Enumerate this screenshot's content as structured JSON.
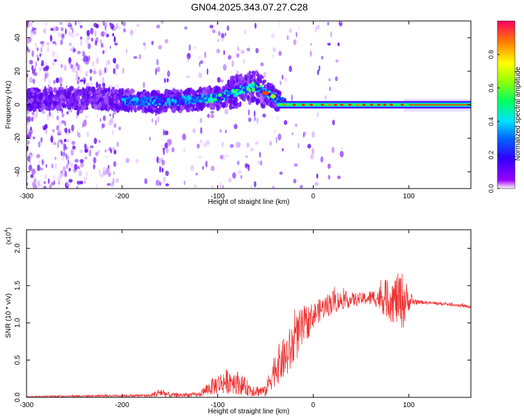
{
  "title": "GN04.2025.343.07.27.C28",
  "chart_data": [
    {
      "type": "heatmap",
      "name": "spectrogram",
      "xlabel": "Height of straight line (km)",
      "ylabel": "Frequency (Hz)",
      "xlim": [
        -300,
        165
      ],
      "ylim": [
        -50,
        50
      ],
      "x_ticks": [
        -300,
        -200,
        -100,
        0,
        100
      ],
      "x_tick_labels": [
        "-300",
        "-200",
        "-100",
        "0",
        "100"
      ],
      "y_ticks": [
        -40,
        -20,
        0,
        20,
        40
      ],
      "y_tick_labels": [
        "-40",
        "-20",
        "0",
        "20",
        "40"
      ],
      "ridge": {
        "x": [
          -300,
          -250,
          -200,
          -175,
          -150,
          -125,
          -100,
          -75,
          -60,
          -52,
          -45,
          -40,
          -35,
          -30,
          -20,
          0,
          50,
          90,
          100,
          165
        ],
        "y": [
          3,
          4,
          3,
          2,
          2,
          3,
          4,
          9,
          11,
          8,
          6,
          4,
          2,
          1,
          0,
          0,
          0,
          0,
          0,
          0
        ]
      },
      "colorbar": {
        "label": "Normalized spectral amplitude",
        "range": [
          0,
          1
        ],
        "ticks": [
          0.0,
          0.2,
          0.4,
          0.6,
          0.8
        ],
        "tick_labels": [
          "0.0",
          "0.2",
          "0.4",
          "0.6",
          "0.8"
        ]
      }
    },
    {
      "type": "line",
      "name": "snr",
      "xlabel": "Height of straight line (km)",
      "ylabel": "SNR (10 * v/v)",
      "scale_label": "(x10",
      "scale_exponent": "4",
      "xlim": [
        -300,
        165
      ],
      "ylim": [
        0,
        22500
      ],
      "x_ticks": [
        -300,
        -200,
        -100,
        0,
        100
      ],
      "x_tick_labels": [
        "-300",
        "-200",
        "-100",
        "0",
        "100"
      ],
      "y_ticks": [
        0,
        5000,
        10000,
        15000,
        20000
      ],
      "y_tick_labels": [
        "0.0",
        "0.5",
        "1.0",
        "1.5",
        "2.0"
      ],
      "envelope": {
        "x": [
          -300,
          -250,
          -200,
          -170,
          -160,
          -150,
          -120,
          -105,
          -95,
          -85,
          -75,
          -65,
          -50,
          -40,
          -32,
          -25,
          -18,
          -10,
          0,
          10,
          20,
          30,
          50,
          65,
          80,
          95,
          100,
          110,
          130,
          150,
          165
        ],
        "base": [
          100,
          180,
          220,
          250,
          700,
          300,
          350,
          1500,
          2000,
          2300,
          1700,
          1000,
          800,
          4000,
          5000,
          6000,
          8000,
          9500,
          11000,
          12000,
          12800,
          13000,
          13200,
          13400,
          13200,
          13000,
          12900,
          12800,
          12600,
          12400,
          12100
        ],
        "amplitude": [
          80,
          120,
          150,
          200,
          700,
          300,
          300,
          1200,
          1600,
          1800,
          1400,
          900,
          700,
          2500,
          2800,
          3200,
          3200,
          2800,
          1700,
          1500,
          1700,
          1200,
          800,
          1200,
          3000,
          4000,
          1200,
          250,
          200,
          200,
          200
        ]
      },
      "series_color": "#ee3333"
    }
  ]
}
